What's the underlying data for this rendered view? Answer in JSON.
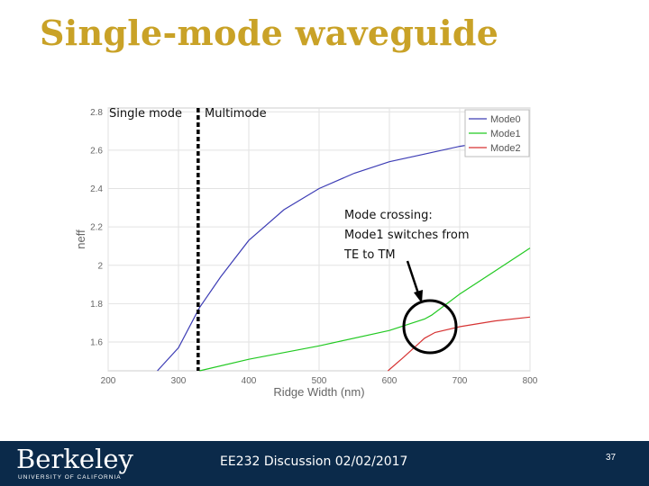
{
  "slide": {
    "title": "Single-mode waveguide",
    "footer_text": "EE232 Discussion 02/02/2017",
    "page_number": "37",
    "logo": "Berkeley",
    "logo_subtitle": "UNIVERSITY OF CALIFORNIA"
  },
  "annotations": {
    "single_mode": "Single mode",
    "multimode": "Multimode",
    "crossing": [
      "Mode crossing:",
      "Mode1 switches from",
      "TE to TM"
    ]
  },
  "chart_data": {
    "type": "line",
    "xlabel": "Ridge Width (nm)",
    "ylabel": "neff",
    "xlim": [
      200,
      800
    ],
    "ylim": [
      1.45,
      2.82
    ],
    "xticks": [
      200,
      300,
      400,
      500,
      600,
      700,
      800
    ],
    "yticks": [
      1.6,
      1.8,
      2.0,
      2.2,
      2.4,
      2.6,
      2.8
    ],
    "ytick_labels": [
      "1.6",
      "1.8",
      "2",
      "2.2",
      "2.4",
      "2.6",
      "2.8"
    ],
    "grid": true,
    "legend": "top-right",
    "single_mode_cutoff_x": 328,
    "series": [
      {
        "name": "Mode0",
        "color": "#3D3DB5",
        "x": [
          270,
          300,
          330,
          360,
          400,
          450,
          500,
          550,
          600,
          650,
          700,
          750,
          775
        ],
        "y": [
          1.45,
          1.57,
          1.78,
          1.94,
          2.13,
          2.29,
          2.4,
          2.48,
          2.54,
          2.58,
          2.62,
          2.65,
          2.66
        ]
      },
      {
        "name": "Mode1",
        "color": "#22C922",
        "x": [
          330,
          400,
          500,
          600,
          650,
          660,
          700,
          750,
          800
        ],
        "y": [
          1.45,
          1.51,
          1.58,
          1.66,
          1.72,
          1.74,
          1.85,
          1.97,
          2.09
        ]
      },
      {
        "name": "Mode2",
        "color": "#D63333",
        "x": [
          598,
          620,
          650,
          665,
          700,
          750,
          800
        ],
        "y": [
          1.45,
          1.52,
          1.62,
          1.65,
          1.68,
          1.71,
          1.73
        ]
      }
    ]
  }
}
